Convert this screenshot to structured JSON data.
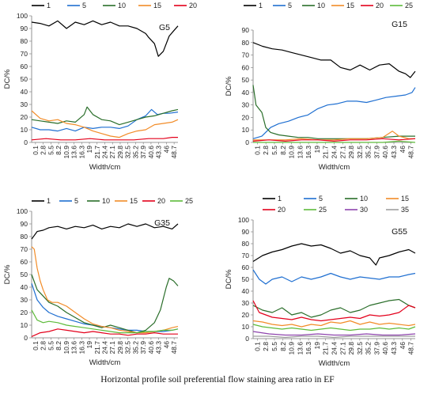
{
  "caption": "Horizontal profile soil preferential flow staining area ratio in EF",
  "chart_data": [
    {
      "type": "line",
      "panel_label": "G5",
      "xlabel": "Width/cm",
      "ylabel": "DC/%",
      "ylim": [
        0,
        100
      ],
      "ytick_step": 10,
      "x_tick_labels": [
        "0.1",
        "2.8",
        "5.5",
        "8.2",
        "10.9",
        "13.6",
        "16.3",
        "19",
        "21.7",
        "24.4",
        "27.1",
        "29.8",
        "32.5",
        "35.2",
        "37.9",
        "40.6",
        "43.3",
        "46",
        "48.7"
      ],
      "x_range": [
        0.1,
        50
      ],
      "grid": false,
      "legend_placement": "top",
      "series": [
        {
          "name": "1",
          "color": "#000000",
          "x": [
            0.1,
            3,
            6,
            9,
            12,
            15,
            18,
            21,
            24,
            27,
            30,
            33,
            36,
            39,
            40,
            42,
            43.3,
            45,
            47,
            48.5,
            50
          ],
          "y": [
            95,
            94,
            92,
            96,
            90,
            95,
            93,
            96,
            93,
            95,
            92,
            92,
            90,
            86,
            83,
            78,
            68,
            72,
            84,
            88,
            92
          ]
        },
        {
          "name": "5",
          "color": "#1f6fd1",
          "x": [
            0.1,
            3,
            6,
            9,
            12,
            15,
            18,
            21,
            24,
            27,
            30,
            33,
            36,
            39,
            41,
            43,
            45,
            47,
            50
          ],
          "y": [
            12,
            10,
            10,
            9,
            11,
            9,
            12,
            11,
            12,
            12,
            11,
            13,
            18,
            21,
            26,
            22,
            23,
            23,
            24
          ]
        },
        {
          "name": "10",
          "color": "#2a6e2a",
          "x": [
            0.1,
            3,
            6,
            9,
            12,
            15,
            18,
            19,
            21,
            24,
            27,
            30,
            33,
            36,
            39,
            42,
            45,
            48,
            50
          ],
          "y": [
            18,
            17,
            16,
            15,
            17,
            16,
            22,
            28,
            22,
            18,
            17,
            14,
            16,
            18,
            20,
            21,
            23,
            25,
            26
          ]
        },
        {
          "name": "15",
          "color": "#f28c28",
          "x": [
            0.1,
            3,
            6,
            9,
            12,
            15,
            18,
            21,
            24,
            27,
            30,
            33,
            36,
            39,
            42,
            45,
            48,
            50
          ],
          "y": [
            25,
            19,
            17,
            18,
            15,
            14,
            12,
            9,
            7,
            5,
            4,
            7,
            9,
            10,
            14,
            15,
            16,
            18
          ]
        },
        {
          "name": "20",
          "color": "#e3001b",
          "x": [
            0.1,
            5,
            10,
            15,
            20,
            25,
            30,
            35,
            40,
            45,
            48,
            50
          ],
          "y": [
            2,
            3,
            2,
            2,
            3,
            2,
            2,
            2,
            3,
            3,
            4,
            4
          ]
        }
      ]
    },
    {
      "type": "line",
      "panel_label": "G15",
      "xlabel": "Width/cm",
      "ylabel": "DC/%",
      "ylim": [
        0,
        90
      ],
      "ytick_step": 10,
      "x_tick_labels": [
        "0.1",
        "2.8",
        "5.5",
        "8.2",
        "10.9",
        "13.6",
        "16.3",
        "19",
        "21.7",
        "24.4",
        "27.1",
        "29.8",
        "32.5",
        "35.2",
        "37.9",
        "40.6",
        "43.3",
        "46",
        "48.7"
      ],
      "x_range": [
        0.1,
        50
      ],
      "grid": false,
      "legend_placement": "top",
      "series": [
        {
          "name": "1",
          "color": "#000000",
          "x": [
            0.1,
            3,
            6,
            9,
            12,
            15,
            18,
            21,
            24,
            27,
            30,
            33,
            36,
            39,
            42,
            45,
            47,
            48.5,
            50
          ],
          "y": [
            80,
            77,
            75,
            74,
            72,
            70,
            68,
            66,
            66,
            60,
            58,
            62,
            58,
            62,
            63,
            57,
            55,
            52,
            57
          ]
        },
        {
          "name": "5",
          "color": "#1f6fd1",
          "x": [
            0.1,
            2.8,
            5.5,
            8,
            11,
            14,
            17,
            20,
            23,
            26,
            29,
            32,
            35,
            38,
            41,
            44,
            47,
            49,
            50
          ],
          "y": [
            3,
            5,
            12,
            15,
            17,
            20,
            22,
            27,
            30,
            31,
            33,
            33,
            32,
            34,
            36,
            37,
            38,
            40,
            44
          ]
        },
        {
          "name": "10",
          "color": "#2a6e2a",
          "x": [
            0.1,
            1,
            2.8,
            4,
            5.5,
            8,
            11,
            14,
            17,
            20,
            25,
            30,
            35,
            40,
            45,
            48,
            50
          ],
          "y": [
            46,
            30,
            24,
            12,
            8,
            6,
            5,
            4,
            4,
            3,
            3,
            3,
            3,
            4,
            5,
            5,
            5
          ]
        },
        {
          "name": "15",
          "color": "#f28c28",
          "x": [
            0.1,
            5,
            10,
            15,
            20,
            25,
            30,
            35,
            40,
            43,
            45,
            48,
            50
          ],
          "y": [
            2,
            2,
            2,
            3,
            2,
            2,
            3,
            3,
            4,
            9,
            5,
            3,
            3
          ]
        },
        {
          "name": "20",
          "color": "#e3001b",
          "x": [
            0.1,
            5,
            10,
            15,
            20,
            25,
            30,
            35,
            40,
            45,
            50
          ],
          "y": [
            1,
            2,
            1,
            2,
            2,
            1,
            2,
            2,
            3,
            2,
            3
          ]
        },
        {
          "name": "25",
          "color": "#5dbb3a",
          "x": [
            0.1,
            5,
            10,
            15,
            20,
            25,
            30,
            35,
            40,
            45,
            50
          ],
          "y": [
            0,
            0,
            0,
            0,
            0,
            0,
            0,
            0,
            0,
            1,
            0
          ]
        }
      ]
    },
    {
      "type": "line",
      "panel_label": "G35",
      "xlabel": "Width/cm",
      "ylabel": "DC/%",
      "ylim": [
        0,
        100
      ],
      "ytick_step": 10,
      "x_tick_labels": [
        "0.1",
        "2.8",
        "5.5",
        "8.2",
        "10.9",
        "13.6",
        "16.3",
        "19",
        "21.7",
        "24.4",
        "27.1",
        "29.8",
        "32.5",
        "35.2",
        "37.9",
        "40.6",
        "43.3",
        "46",
        "48.7"
      ],
      "x_range": [
        0.1,
        50
      ],
      "grid": false,
      "legend_placement": "top",
      "series": [
        {
          "name": "1",
          "color": "#000000",
          "x": [
            0.1,
            2,
            4,
            6,
            9,
            12,
            15,
            18,
            21,
            24,
            27,
            30,
            33,
            36,
            39,
            42,
            45,
            48,
            50
          ],
          "y": [
            78,
            84,
            85,
            87,
            88,
            86,
            88,
            87,
            89,
            86,
            88,
            87,
            90,
            88,
            90,
            87,
            88,
            86,
            90
          ]
        },
        {
          "name": "5",
          "color": "#1f6fd1",
          "x": [
            0.1,
            2,
            4,
            6,
            9,
            12,
            15,
            18,
            21,
            24,
            27,
            30,
            33,
            36,
            39,
            42,
            45,
            48,
            50
          ],
          "y": [
            43,
            30,
            24,
            20,
            17,
            15,
            13,
            11,
            10,
            9,
            8,
            7,
            6,
            6,
            5,
            5,
            5,
            6,
            7
          ]
        },
        {
          "name": "10",
          "color": "#2a6e2a",
          "x": [
            0.1,
            2,
            4,
            6,
            9,
            12,
            15,
            18,
            21,
            24,
            27,
            30,
            33,
            36,
            39,
            42,
            44,
            46,
            47,
            48.5,
            50
          ],
          "y": [
            50,
            38,
            33,
            28,
            25,
            20,
            16,
            12,
            10,
            8,
            10,
            8,
            6,
            4,
            6,
            12,
            22,
            40,
            47,
            45,
            41
          ]
        },
        {
          "name": "15",
          "color": "#f28c28",
          "x": [
            0.1,
            1,
            2,
            3,
            4,
            5.5,
            7,
            9,
            12,
            15,
            18,
            21,
            24,
            27,
            30,
            33,
            36,
            39,
            42,
            45,
            48,
            50
          ],
          "y": [
            72,
            70,
            55,
            45,
            38,
            30,
            28,
            28,
            25,
            20,
            15,
            11,
            9,
            8,
            6,
            5,
            4,
            4,
            5,
            6,
            8,
            9
          ]
        },
        {
          "name": "20",
          "color": "#e3001b",
          "x": [
            0.1,
            3,
            6,
            9,
            12,
            15,
            18,
            21,
            24,
            27,
            30,
            33,
            36,
            39,
            42,
            45,
            48,
            50
          ],
          "y": [
            1,
            4,
            5,
            7,
            6,
            5,
            4,
            5,
            4,
            3,
            3,
            2,
            3,
            3,
            4,
            3,
            3,
            3
          ]
        },
        {
          "name": "25",
          "color": "#5dbb3a",
          "x": [
            0.1,
            2,
            4,
            6,
            9,
            12,
            15,
            18,
            21,
            24,
            27,
            30,
            33,
            36,
            39,
            42,
            45,
            48,
            50
          ],
          "y": [
            22,
            14,
            12,
            13,
            12,
            10,
            9,
            8,
            7,
            6,
            5,
            4,
            4,
            4,
            5,
            5,
            6,
            6,
            7
          ]
        }
      ]
    },
    {
      "type": "line",
      "panel_label": "G55",
      "xlabel": "Width/cm",
      "ylabel": "DC/%",
      "ylim": [
        0,
        100
      ],
      "ytick_step": 10,
      "x_tick_labels": [
        "0.1",
        "2.8",
        "5.5",
        "8.2",
        "10.9",
        "13.6",
        "16.3",
        "19",
        "21.7",
        "24.4",
        "27.1",
        "29.8",
        "32.5",
        "35.2",
        "37.9",
        "40.6",
        "43.3",
        "46",
        "48.7"
      ],
      "x_range": [
        0.1,
        50
      ],
      "grid": false,
      "legend_placement": "top",
      "series": [
        {
          "name": "1",
          "color": "#000000",
          "x": [
            0.1,
            3,
            6,
            9,
            12,
            15,
            18,
            21,
            24,
            27,
            30,
            33,
            36,
            37.9,
            39,
            42,
            45,
            48,
            50
          ],
          "y": [
            65,
            70,
            73,
            75,
            78,
            80,
            78,
            79,
            76,
            72,
            74,
            70,
            68,
            62,
            68,
            70,
            73,
            75,
            72
          ]
        },
        {
          "name": "5",
          "color": "#1f6fd1",
          "x": [
            0.1,
            2,
            4,
            6,
            9,
            12,
            15,
            18,
            21,
            24,
            27,
            30,
            33,
            36,
            39,
            42,
            45,
            48,
            50
          ],
          "y": [
            58,
            50,
            46,
            50,
            52,
            48,
            52,
            50,
            52,
            55,
            52,
            50,
            52,
            51,
            50,
            52,
            52,
            54,
            55
          ]
        },
        {
          "name": "10",
          "color": "#2a6e2a",
          "x": [
            0.1,
            3,
            6,
            9,
            12,
            15,
            18,
            21,
            24,
            27,
            30,
            33,
            36,
            39,
            42,
            45,
            48,
            50
          ],
          "y": [
            28,
            24,
            22,
            26,
            20,
            22,
            18,
            20,
            24,
            26,
            22,
            24,
            28,
            30,
            32,
            33,
            28,
            26
          ]
        },
        {
          "name": "15",
          "color": "#f28c28",
          "x": [
            0.1,
            3,
            6,
            9,
            12,
            15,
            18,
            21,
            24,
            27,
            30,
            33,
            36,
            39,
            42,
            45,
            48,
            50
          ],
          "y": [
            15,
            14,
            12,
            11,
            12,
            10,
            12,
            11,
            14,
            13,
            15,
            12,
            14,
            12,
            13,
            12,
            11,
            12
          ]
        },
        {
          "name": "20",
          "color": "#e3001b",
          "x": [
            0.1,
            2,
            4,
            6,
            9,
            12,
            15,
            18,
            21,
            24,
            27,
            30,
            33,
            36,
            39,
            42,
            45,
            48,
            50
          ],
          "y": [
            32,
            22,
            20,
            18,
            17,
            16,
            18,
            16,
            15,
            16,
            17,
            18,
            17,
            20,
            19,
            20,
            22,
            28,
            26
          ]
        },
        {
          "name": "25",
          "color": "#5dbb3a",
          "x": [
            0.1,
            3,
            6,
            9,
            12,
            15,
            18,
            21,
            24,
            27,
            30,
            33,
            36,
            39,
            42,
            45,
            48,
            50
          ],
          "y": [
            12,
            10,
            9,
            8,
            9,
            8,
            7,
            8,
            9,
            8,
            7,
            8,
            8,
            9,
            8,
            9,
            8,
            10
          ]
        },
        {
          "name": "30",
          "color": "#8e44ad",
          "x": [
            0.1,
            5,
            10,
            15,
            20,
            25,
            30,
            35,
            40,
            45,
            50
          ],
          "y": [
            6,
            4,
            3,
            3,
            4,
            3,
            3,
            4,
            3,
            3,
            4
          ]
        },
        {
          "name": "35",
          "color": "#9e9e9e",
          "x": [
            0.1,
            5,
            10,
            15,
            20,
            25,
            30,
            35,
            40,
            45,
            50
          ],
          "y": [
            2,
            2,
            1,
            2,
            2,
            1,
            2,
            2,
            2,
            2,
            2
          ]
        }
      ]
    }
  ]
}
